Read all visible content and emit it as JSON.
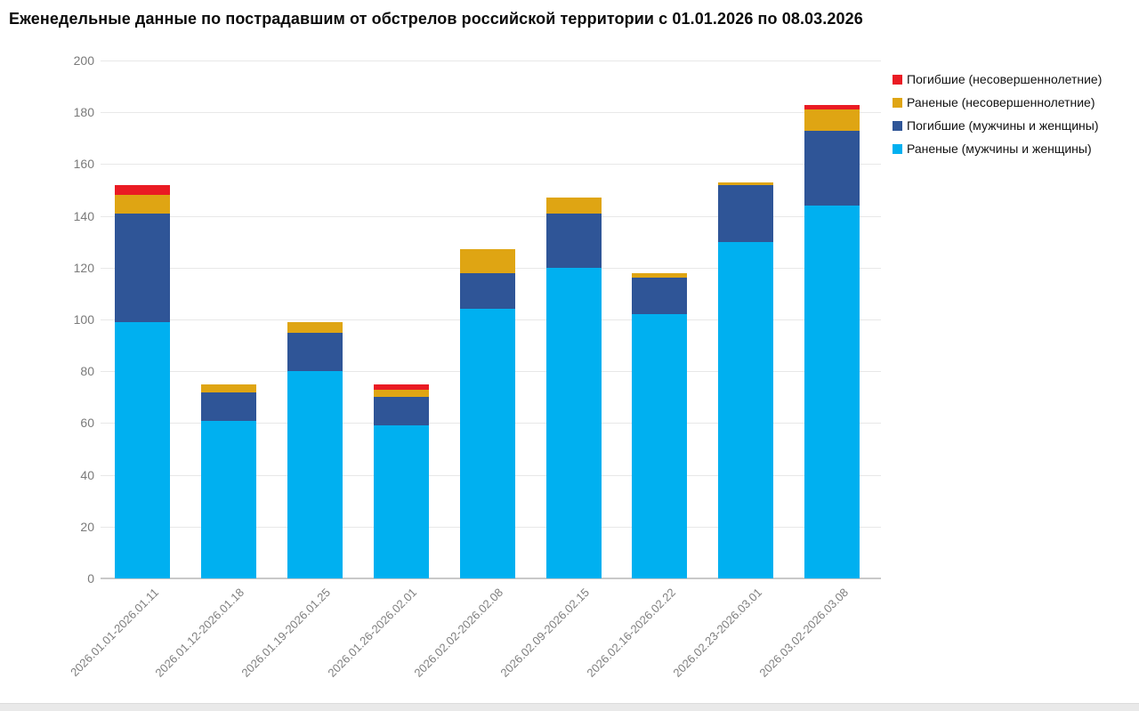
{
  "title": "Еженедельные данные по пострадавшим от обстрелов российской территории с 01.01.2026 по 08.03.2026",
  "chart_data": {
    "type": "bar",
    "stacked": true,
    "title": "Еженедельные данные по пострадавшим от обстрелов российской территории с 01.01.2026 по 08.03.2026",
    "xlabel": "",
    "ylabel": "",
    "ylim": [
      0,
      200
    ],
    "yticks": [
      0,
      20,
      40,
      60,
      80,
      100,
      120,
      140,
      160,
      180,
      200
    ],
    "grid": true,
    "legend_position": "top-right",
    "categories": [
      "2026.01.01-2026.01.11",
      "2026.01.12-2026.01.18",
      "2026.01.19-2026.01.25",
      "2026.01.26-2026.02.01",
      "2026.02.02-2026.02.08",
      "2026.02.09-2026.02.15",
      "2026.02.16-2026.02.22",
      "2026.02.23-2026.03.01",
      "2026.03.02-2026.03.08"
    ],
    "series": [
      {
        "name": "Раненые (мужчины и женщины)",
        "color": "#00b0f0",
        "values": [
          99,
          61,
          80,
          59,
          104,
          120,
          102,
          130,
          144
        ]
      },
      {
        "name": "Погибшие (мужчины и женщины)",
        "color": "#2f5597",
        "values": [
          42,
          11,
          15,
          11,
          14,
          21,
          14,
          22,
          29
        ]
      },
      {
        "name": "Раненые (несовершеннолетние)",
        "color": "#dfa513",
        "values": [
          7,
          3,
          4,
          3,
          9,
          6,
          2,
          1,
          8
        ]
      },
      {
        "name": "Погибшие (несовершеннолетние)",
        "color": "#ea1b23",
        "values": [
          4,
          0,
          0,
          2,
          0,
          0,
          0,
          0,
          2
        ]
      }
    ],
    "legend": [
      {
        "label": "Погибшие (несовершеннолетние)",
        "color": "#ea1b23"
      },
      {
        "label": "Раненые (несовершеннолетние)",
        "color": "#dfa513"
      },
      {
        "label": "Погибшие (мужчины и женщины)",
        "color": "#2f5597"
      },
      {
        "label": "Раненые (мужчины и женщины)",
        "color": "#00b0f0"
      }
    ],
    "totals": [
      152,
      75,
      99,
      75,
      127,
      147,
      118,
      153,
      183
    ]
  },
  "colors": {
    "gridline": "#e8e8e8",
    "axis_line": "#c9c9c9",
    "tick_text": "#7a7a7a",
    "title_text": "#0b0b0b",
    "background": "#ffffff",
    "footer_strip": "#e9e9e9"
  }
}
